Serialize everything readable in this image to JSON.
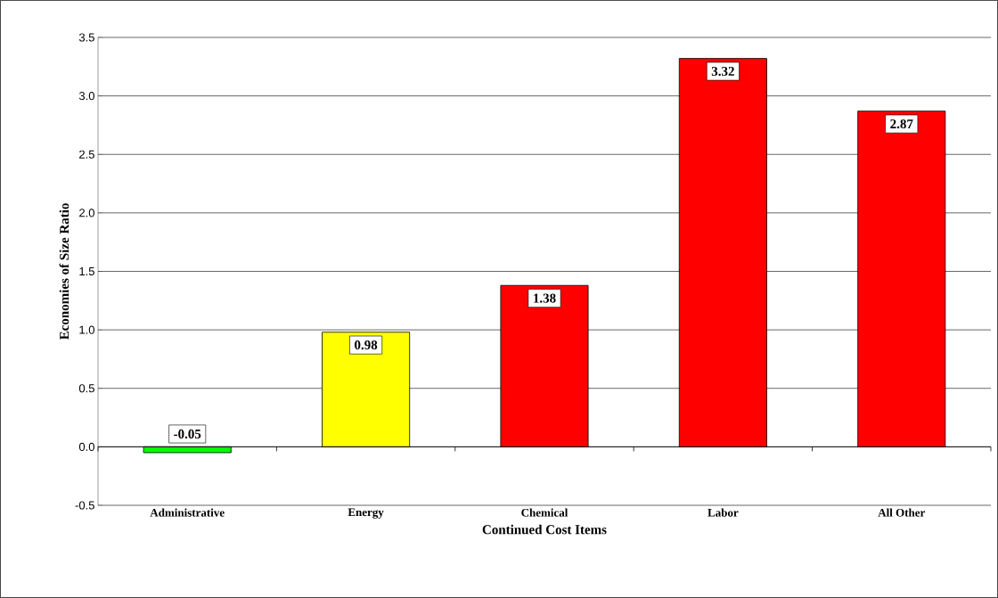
{
  "chart_data": {
    "type": "bar",
    "xlabel": "Continued Cost Items",
    "ylabel": "Economies of Size Ratio",
    "categories": [
      "Administrative",
      "Energy",
      "Chemical",
      "Labor",
      "All Other"
    ],
    "values": [
      -0.05,
      0.98,
      1.38,
      3.32,
      2.87
    ],
    "colors": [
      "#00ff00",
      "#ffff00",
      "#ff0000",
      "#ff0000",
      "#ff0000"
    ],
    "ylim": [
      -0.5,
      3.5
    ],
    "yticks": [
      {
        "value": -0.5,
        "label": "-0.5"
      },
      {
        "value": 0,
        "label": "0.0"
      },
      {
        "value": 0.5,
        "label": "0.5"
      },
      {
        "value": 1,
        "label": "1.0"
      },
      {
        "value": 1.5,
        "label": "1.5"
      },
      {
        "value": 2,
        "label": "2.0"
      },
      {
        "value": 2.5,
        "label": "2.5"
      },
      {
        "value": 3,
        "label": "3.0"
      },
      {
        "value": 3.5,
        "label": "3.5"
      }
    ],
    "grid": "y",
    "data_labels": true
  }
}
